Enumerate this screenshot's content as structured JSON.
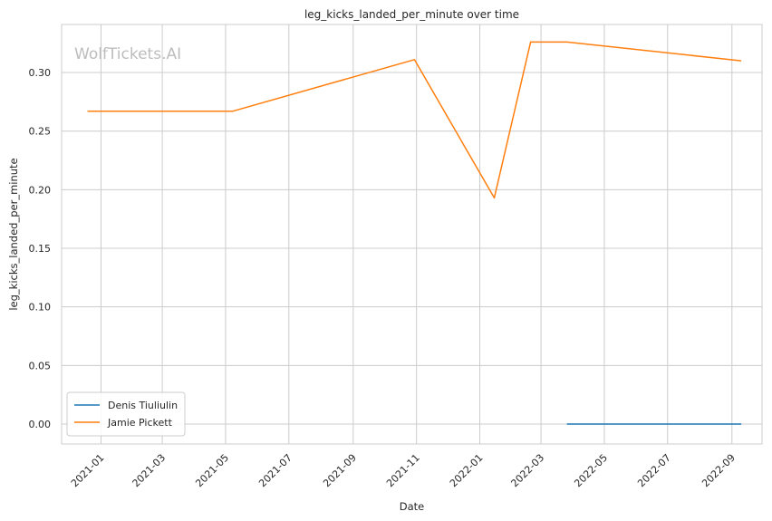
{
  "chart_data": {
    "type": "line",
    "title": "leg_kicks_landed_per_minute over time",
    "xlabel": "Date",
    "ylabel": "leg_kicks_landed_per_minute",
    "watermark": "WolfTickets.AI",
    "x_ticks": [
      "2021-01",
      "2021-03",
      "2021-05",
      "2021-07",
      "2021-09",
      "2021-11",
      "2022-01",
      "2022-03",
      "2022-05",
      "2022-07",
      "2022-09"
    ],
    "y_ticks": [
      "0.00",
      "0.05",
      "0.10",
      "0.15",
      "0.20",
      "0.25",
      "0.30"
    ],
    "xlim": [
      "2020-11-24",
      "2022-09-30"
    ],
    "ylim": [
      -0.017,
      0.341
    ],
    "grid": true,
    "legend_position": "lower-left",
    "series": [
      {
        "name": "Denis Tiuliulin",
        "color": "#1f77b4",
        "points": [
          {
            "x": "2022-03-26",
            "y": 0.0
          },
          {
            "x": "2022-09-10",
            "y": 0.0
          }
        ]
      },
      {
        "name": "Jamie Pickett",
        "color": "#ff7f0e",
        "points": [
          {
            "x": "2020-12-19",
            "y": 0.267
          },
          {
            "x": "2021-05-08",
            "y": 0.267
          },
          {
            "x": "2021-10-30",
            "y": 0.311
          },
          {
            "x": "2022-01-15",
            "y": 0.193
          },
          {
            "x": "2022-02-19",
            "y": 0.326
          },
          {
            "x": "2022-03-26",
            "y": 0.326
          },
          {
            "x": "2022-09-10",
            "y": 0.31
          }
        ]
      }
    ]
  }
}
